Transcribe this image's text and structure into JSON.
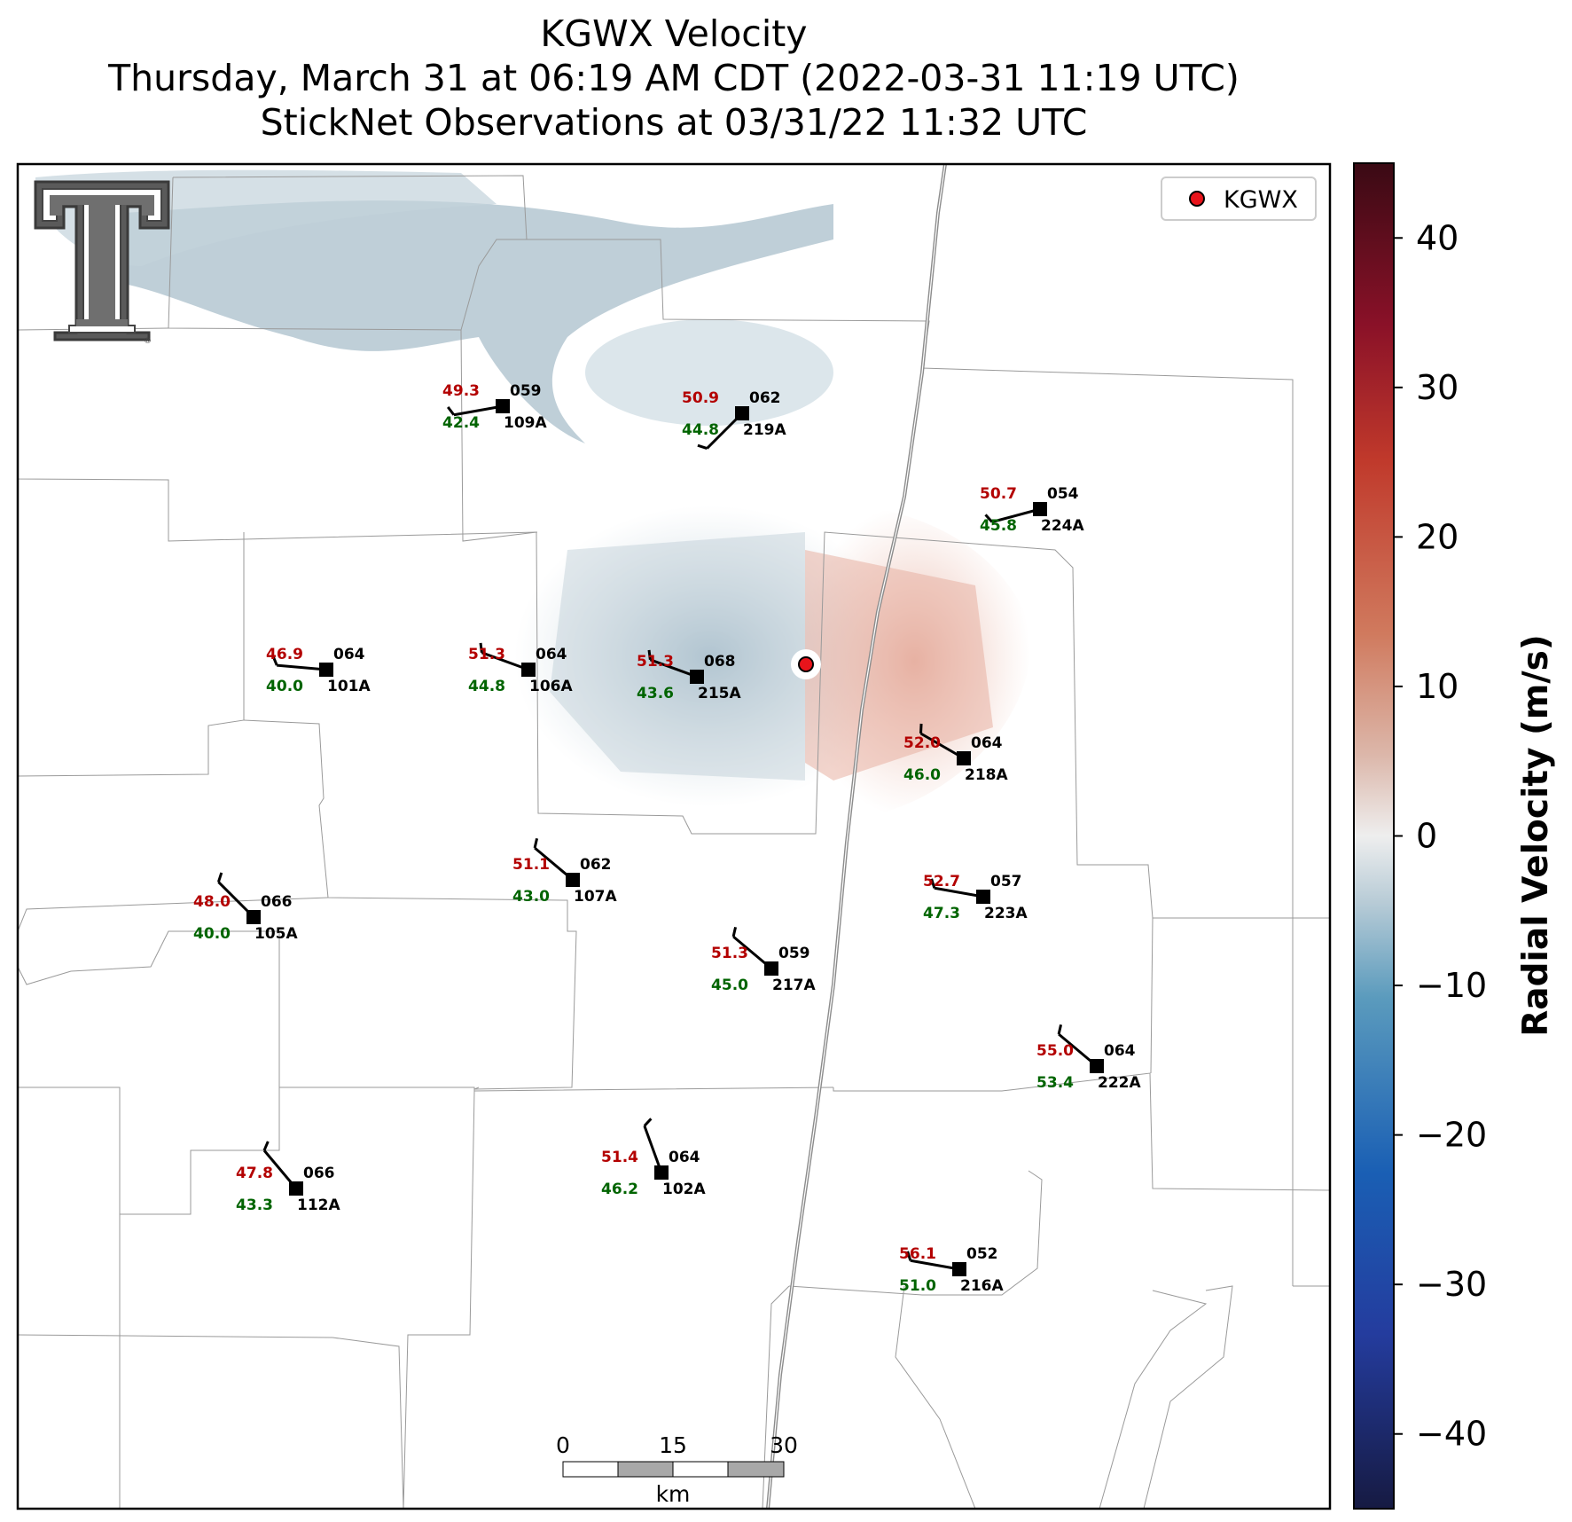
{
  "title": {
    "line1": "KGWX Velocity",
    "line2": "Thursday, March 31 at 06:19 AM CDT (2022-03-31 11:19 UTC)",
    "line3": "StickNet Observations at 03/31/22 11:32 UTC"
  },
  "legend": {
    "label": "KGWX",
    "marker_color": "#e8141b"
  },
  "colorbar": {
    "title": "Radial Velocity (m/s)",
    "ticks": [
      "40",
      "30",
      "20",
      "10",
      "0",
      "−10",
      "−20",
      "−30",
      "−40"
    ],
    "range": [
      -45,
      45
    ],
    "colors": {
      "low": "#161a42",
      "neg": "#1a5fb4",
      "mid": "#eeeeee",
      "pos": "#c0392b",
      "high": "#3a0a14"
    }
  },
  "scalebar": {
    "ticks": [
      "0",
      "15",
      "30"
    ],
    "unit": "km"
  },
  "colors": {
    "temperature": "#b30000",
    "dewpoint": "#006400",
    "station": "#000000"
  },
  "logo": "texas-tech-double-t-logo",
  "stations": [
    {
      "id": "109A",
      "temp": "49.3",
      "dew": "42.4",
      "pressure": "059",
      "wind_dir": 260
    },
    {
      "id": "219A",
      "temp": "50.9",
      "dew": "44.8",
      "pressure": "062",
      "wind_dir": 225
    },
    {
      "id": "224A",
      "temp": "50.7",
      "dew": "45.8",
      "pressure": "054",
      "wind_dir": 255
    },
    {
      "id": "101A",
      "temp": "46.9",
      "dew": "40.0",
      "pressure": "064",
      "wind_dir": 275
    },
    {
      "id": "106A",
      "temp": "51.3",
      "dew": "44.8",
      "pressure": "064",
      "wind_dir": 290
    },
    {
      "id": "215A",
      "temp": "51.3",
      "dew": "43.6",
      "pressure": "068",
      "wind_dir": 290
    },
    {
      "id": "218A",
      "temp": "52.0",
      "dew": "46.0",
      "pressure": "064",
      "wind_dir": 300
    },
    {
      "id": "107A",
      "temp": "51.1",
      "dew": "43.0",
      "pressure": "062",
      "wind_dir": 310
    },
    {
      "id": "105A",
      "temp": "48.0",
      "dew": "40.0",
      "pressure": "066",
      "wind_dir": 315
    },
    {
      "id": "223A",
      "temp": "52.7",
      "dew": "47.3",
      "pressure": "057",
      "wind_dir": 280
    },
    {
      "id": "217A",
      "temp": "51.3",
      "dew": "45.0",
      "pressure": "059",
      "wind_dir": 310
    },
    {
      "id": "222A",
      "temp": "55.0",
      "dew": "53.4",
      "pressure": "064",
      "wind_dir": 310
    },
    {
      "id": "112A",
      "temp": "47.8",
      "dew": "43.3",
      "pressure": "066",
      "wind_dir": 320
    },
    {
      "id": "102A",
      "temp": "51.4",
      "dew": "46.2",
      "pressure": "064",
      "wind_dir": 340
    },
    {
      "id": "216A",
      "temp": "56.1",
      "dew": "51.0",
      "pressure": "052",
      "wind_dir": 280
    }
  ]
}
